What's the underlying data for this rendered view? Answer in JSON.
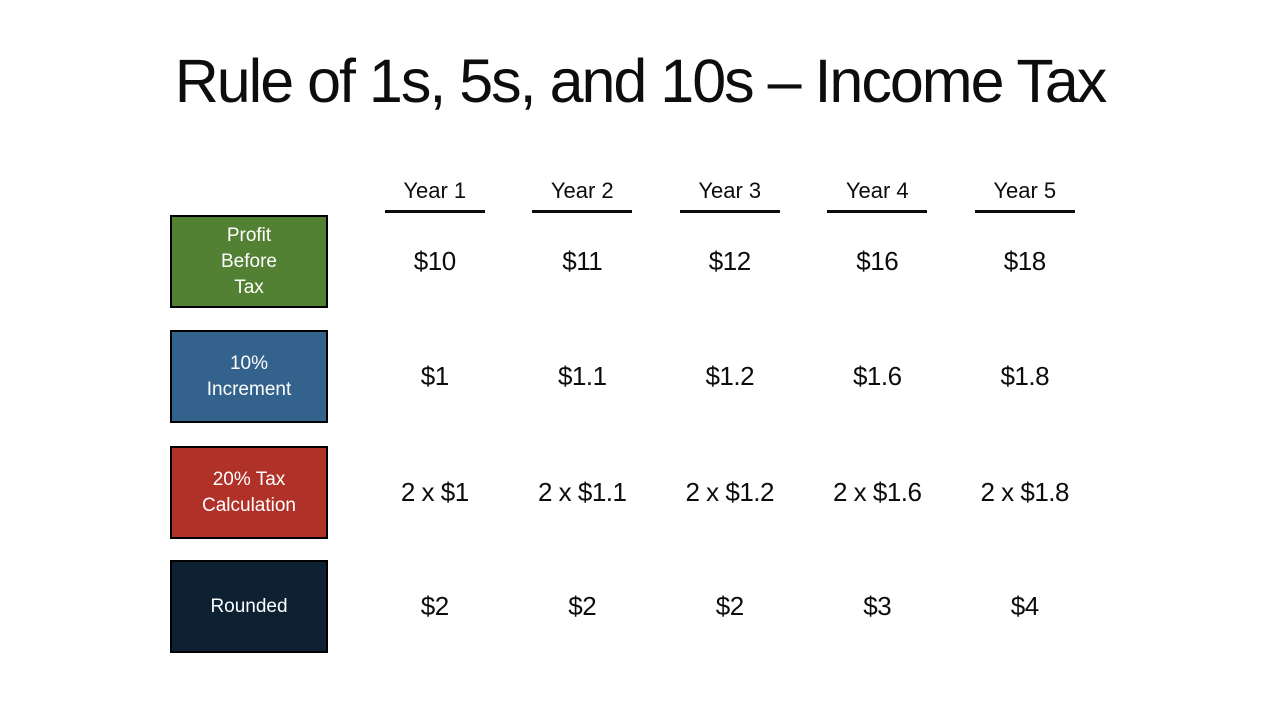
{
  "slide": {
    "title": "Rule of 1s, 5s, and 10s – Income Tax",
    "background": "#ffffff"
  },
  "table": {
    "col_headers": [
      "Year 1",
      "Year 2",
      "Year 3",
      "Year 4",
      "Year 5"
    ],
    "rows": [
      {
        "id": "profit-before-tax",
        "label": "Profit\nBefore\nTax",
        "fill": "#538134",
        "border": "#000000",
        "text_color": "#ffffff",
        "values": [
          "$10",
          "$11",
          "$12",
          "$16",
          "$18"
        ]
      },
      {
        "id": "ten-percent-increment",
        "label": "10%\nIncrement",
        "fill": "#33638D",
        "border": "#000000",
        "text_color": "#ffffff",
        "values": [
          "$1",
          "$1.1",
          "$1.2",
          "$1.6",
          "$1.8"
        ]
      },
      {
        "id": "twenty-percent-tax-calculation",
        "label": "20% Tax\nCalculation",
        "fill": "#B03128",
        "border": "#000000",
        "text_color": "#ffffff",
        "values": [
          "2 x $1",
          "2 x $1.1",
          "2 x $1.2",
          "2 x $1.6",
          "2 x $1.8"
        ]
      },
      {
        "id": "rounded",
        "label": "Rounded",
        "fill": "#0D2132",
        "border": "#000000",
        "text_color": "#ffffff",
        "values": [
          "$2",
          "$2",
          "$2",
          "$3",
          "$4"
        ]
      }
    ]
  }
}
